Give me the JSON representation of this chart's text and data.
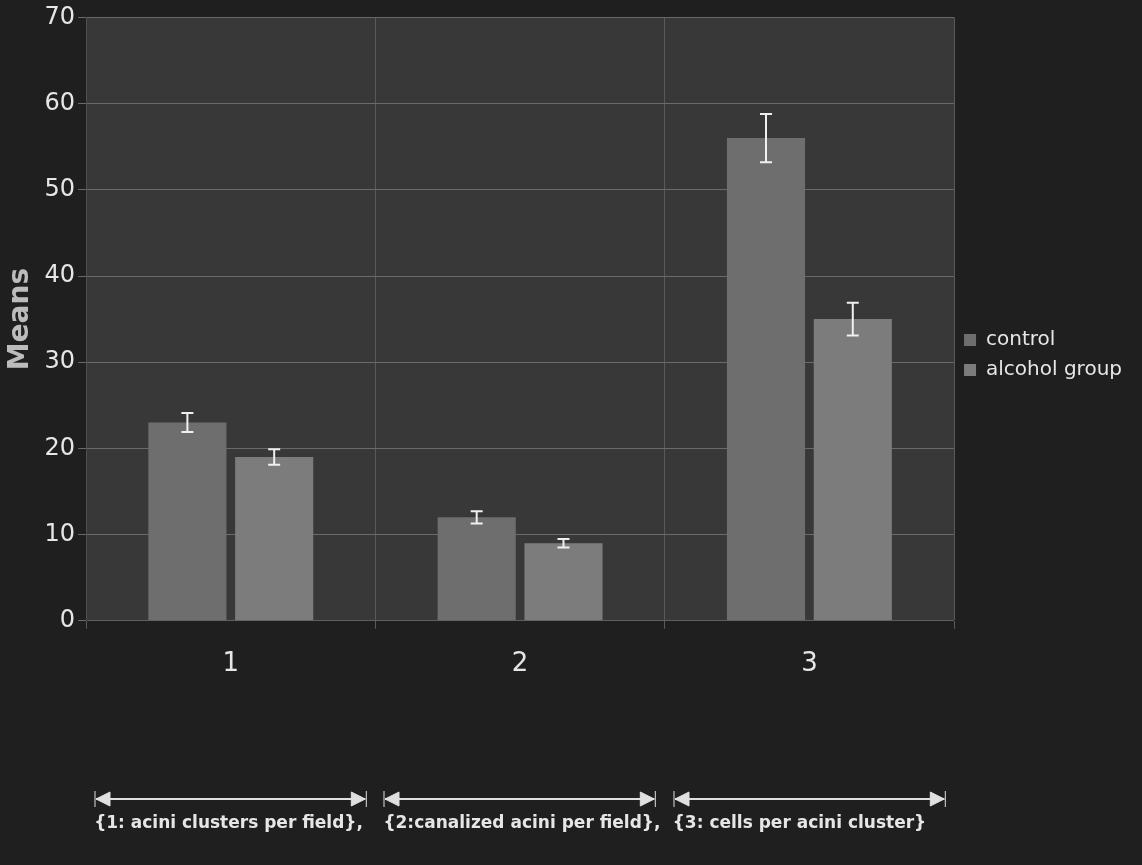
{
  "chart_data": {
    "type": "bar",
    "ylabel": "Means",
    "categories": [
      "1",
      "2",
      "3"
    ],
    "series": [
      {
        "name": "control",
        "color": "#6e6e6e",
        "values": [
          23,
          12,
          56
        ],
        "errors": [
          1.1,
          0.7,
          2.8
        ]
      },
      {
        "name": "alcohol group",
        "color": "#7c7c7c",
        "values": [
          19,
          9,
          35
        ],
        "errors": [
          0.9,
          0.5,
          1.9
        ]
      }
    ],
    "ylim": [
      0,
      70
    ],
    "yticks": [
      0,
      10,
      20,
      30,
      40,
      50,
      60,
      70
    ],
    "grid": true,
    "legend": "right",
    "annotations": [
      "{1: acini clusters per field},",
      "{2:canalized acini per field},",
      "{3: cells per acini cluster}"
    ]
  }
}
